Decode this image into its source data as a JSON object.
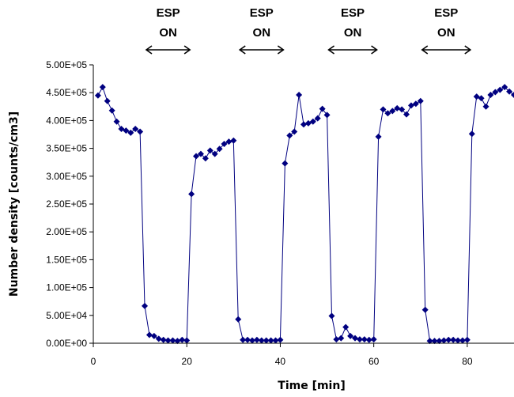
{
  "chart_data": {
    "type": "line",
    "xlabel": "Time [min]",
    "ylabel": "Number density [counts/cm3]",
    "xlim": [
      0,
      90
    ],
    "ylim": [
      0,
      500000
    ],
    "x_ticks": [
      "0",
      "20",
      "40",
      "60",
      "80"
    ],
    "x_tick_values": [
      0,
      20,
      40,
      60,
      80
    ],
    "y_ticks": [
      "0.00E+00",
      "5.00E+04",
      "1.00E+05",
      "1.50E+05",
      "2.00E+05",
      "2.50E+05",
      "3.00E+05",
      "3.50E+05",
      "4.00E+05",
      "4.50E+05",
      "5.00E+05"
    ],
    "y_tick_values": [
      0,
      50000,
      100000,
      150000,
      200000,
      250000,
      300000,
      350000,
      400000,
      450000,
      500000
    ],
    "grid": false,
    "series": [
      {
        "marker": "diamond",
        "color": "#000080",
        "x": [
          1,
          2,
          3,
          4,
          5,
          6,
          7,
          8,
          9,
          10,
          11,
          12,
          13,
          14,
          15,
          16,
          17,
          18,
          19,
          20,
          21,
          22,
          23,
          24,
          25,
          26,
          27,
          28,
          29,
          30,
          31,
          32,
          33,
          34,
          35,
          36,
          37,
          38,
          39,
          40,
          41,
          42,
          43,
          44,
          45,
          46,
          47,
          48,
          49,
          50,
          51,
          52,
          53,
          54,
          55,
          56,
          57,
          58,
          59,
          60,
          61,
          62,
          63,
          64,
          65,
          66,
          67,
          68,
          69,
          70,
          71,
          72,
          73,
          74,
          75,
          76,
          77,
          78,
          79,
          80,
          81,
          82,
          83,
          84,
          85,
          86,
          87,
          88,
          89,
          90
        ],
        "y": [
          445000,
          460000,
          435000,
          418000,
          398000,
          385000,
          382000,
          378000,
          385000,
          380000,
          67000,
          15000,
          13000,
          8000,
          6000,
          5000,
          5000,
          4000,
          6000,
          5000,
          268000,
          336000,
          340000,
          332000,
          346000,
          340000,
          349000,
          358000,
          362000,
          364000,
          43000,
          6000,
          6000,
          5000,
          6000,
          5000,
          5000,
          5000,
          5000,
          6000,
          323000,
          373000,
          380000,
          446000,
          393000,
          395000,
          398000,
          404000,
          421000,
          410000,
          49000,
          7000,
          9000,
          29000,
          13000,
          9000,
          7000,
          7000,
          6000,
          7000,
          371000,
          420000,
          413000,
          417000,
          422000,
          420000,
          411000,
          427000,
          430000,
          435000,
          60000,
          4000,
          4000,
          4000,
          5000,
          6000,
          6000,
          5000,
          5000,
          6000,
          376000,
          443000,
          440000,
          425000,
          446000,
          451000,
          455000,
          460000,
          452000,
          446000
        ]
      }
    ],
    "annotations": [
      {
        "line1": "ESP",
        "line2": "ON",
        "x_start": 11,
        "x_end": 21
      },
      {
        "line1": "ESP",
        "line2": "ON",
        "x_start": 31,
        "x_end": 41
      },
      {
        "line1": "ESP",
        "line2": "ON",
        "x_start": 50,
        "x_end": 61
      },
      {
        "line1": "ESP",
        "line2": "ON",
        "x_start": 70,
        "x_end": 81
      }
    ]
  }
}
